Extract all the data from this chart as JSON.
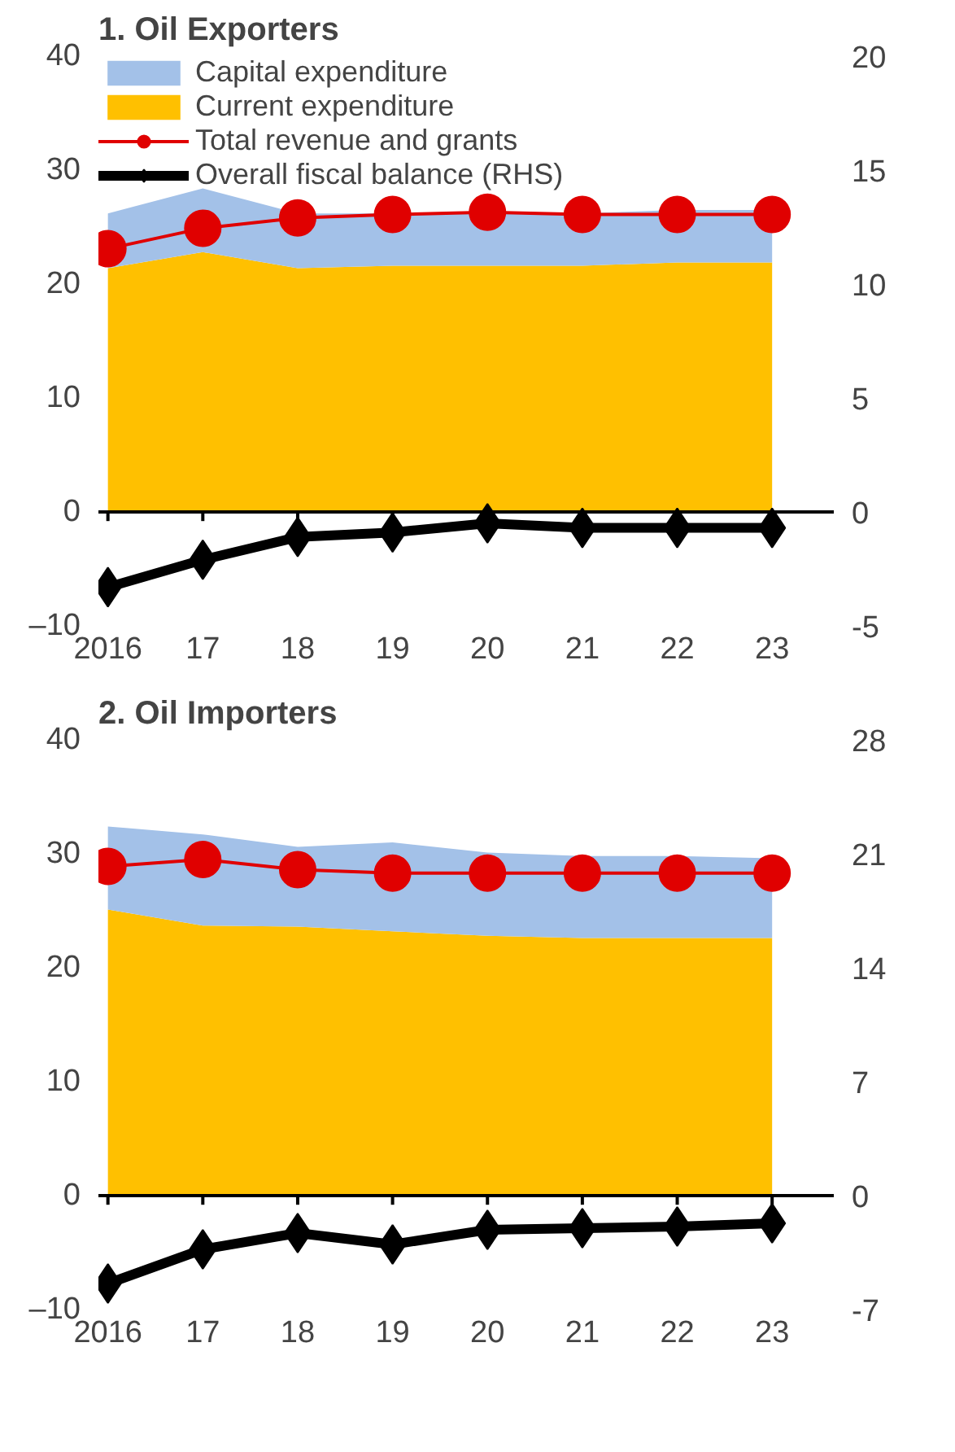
{
  "chart_data": [
    {
      "type": "area",
      "title": "1. Oil Exporters",
      "categories": [
        "2016",
        "17",
        "18",
        "19",
        "20",
        "21",
        "22",
        "23"
      ],
      "stacked": true,
      "ylim": [
        -10,
        40
      ],
      "yticks": [
        {
          "value": -10,
          "label": "–10"
        },
        0,
        10,
        20,
        30,
        40
      ],
      "y2lim": [
        -5,
        20
      ],
      "y2ticks": [
        -5,
        0,
        5,
        10,
        15,
        20
      ],
      "legend": "top left",
      "grid": false,
      "ref_lines": [
        {
          "axis": "y",
          "value": 0,
          "color": "#000000"
        }
      ],
      "series": [
        {
          "name": "Current expenditure",
          "color": "#ffc000",
          "values": [
            21.4,
            22.8,
            21.4,
            21.6,
            21.6,
            21.6,
            21.9,
            21.9
          ]
        },
        {
          "name": "Capital expenditure",
          "color": "#a3c1e8",
          "values": [
            4.8,
            5.6,
            4.8,
            4.6,
            4.7,
            4.6,
            4.6,
            4.6
          ]
        },
        {
          "name": "Total revenue and grants",
          "type": "line",
          "color": "#e00000",
          "marker": "circle",
          "values": [
            23.1,
            24.9,
            25.8,
            26.1,
            26.3,
            26.1,
            26.1,
            26.1
          ]
        },
        {
          "name": "Overall fiscal balance (RHS)",
          "type": "line",
          "color": "#000000",
          "marker": "diamond",
          "axis": "y2",
          "values": [
            -3.3,
            -2.1,
            -1.1,
            -0.9,
            -0.5,
            -0.7,
            -0.7,
            -0.7
          ]
        }
      ]
    },
    {
      "type": "area",
      "title": "2. Oil Importers",
      "categories": [
        "2016",
        "17",
        "18",
        "19",
        "20",
        "21",
        "22",
        "23"
      ],
      "stacked": true,
      "ylim": [
        -10,
        40
      ],
      "yticks": [
        {
          "value": -10,
          "label": "–10"
        },
        0,
        10,
        20,
        30,
        40
      ],
      "y2lim": [
        -7,
        28
      ],
      "y2ticks": [
        -7,
        0,
        7,
        14,
        21,
        28
      ],
      "legend": false,
      "grid": false,
      "ref_lines": [
        {
          "axis": "y",
          "value": 0,
          "color": "#000000"
        }
      ],
      "series": [
        {
          "color": "#ffc000",
          "values": [
            25.1,
            23.7,
            23.6,
            23.2,
            22.8,
            22.6,
            22.6,
            22.6
          ]
        },
        {
          "color": "#a3c1e8",
          "values": [
            7.3,
            8.0,
            7.0,
            7.8,
            7.3,
            7.2,
            7.2,
            7.0
          ]
        },
        {
          "type": "line",
          "color": "#e00000",
          "marker": "circle",
          "values": [
            28.9,
            29.5,
            28.6,
            28.3,
            28.3,
            28.3,
            28.3,
            28.3
          ]
        },
        {
          "type": "line",
          "color": "#000000",
          "marker": "diamond",
          "axis": "y2",
          "values": [
            -5.4,
            -3.3,
            -2.3,
            -3.0,
            -2.1,
            -2.0,
            -1.9,
            -1.7
          ]
        }
      ]
    }
  ]
}
